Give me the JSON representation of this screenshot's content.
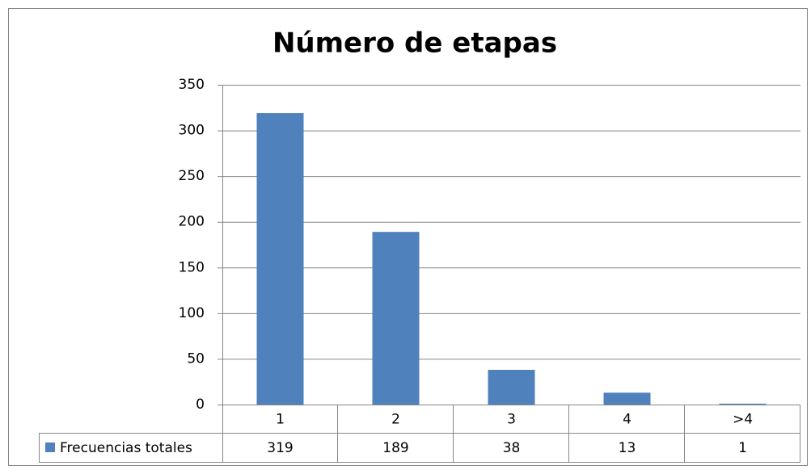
{
  "chart_data": {
    "type": "bar",
    "title": "Número de etapas",
    "categories": [
      "1",
      "2",
      "3",
      "4",
      ">4"
    ],
    "series": [
      {
        "name": "Frecuencias totales",
        "color": "#4f81bd",
        "values": [
          319,
          189,
          38,
          13,
          1
        ]
      }
    ],
    "ylim": [
      0,
      350
    ],
    "yticks": [
      0,
      50,
      100,
      150,
      200,
      250,
      300,
      350
    ],
    "grid": true,
    "legend": "bottom"
  }
}
